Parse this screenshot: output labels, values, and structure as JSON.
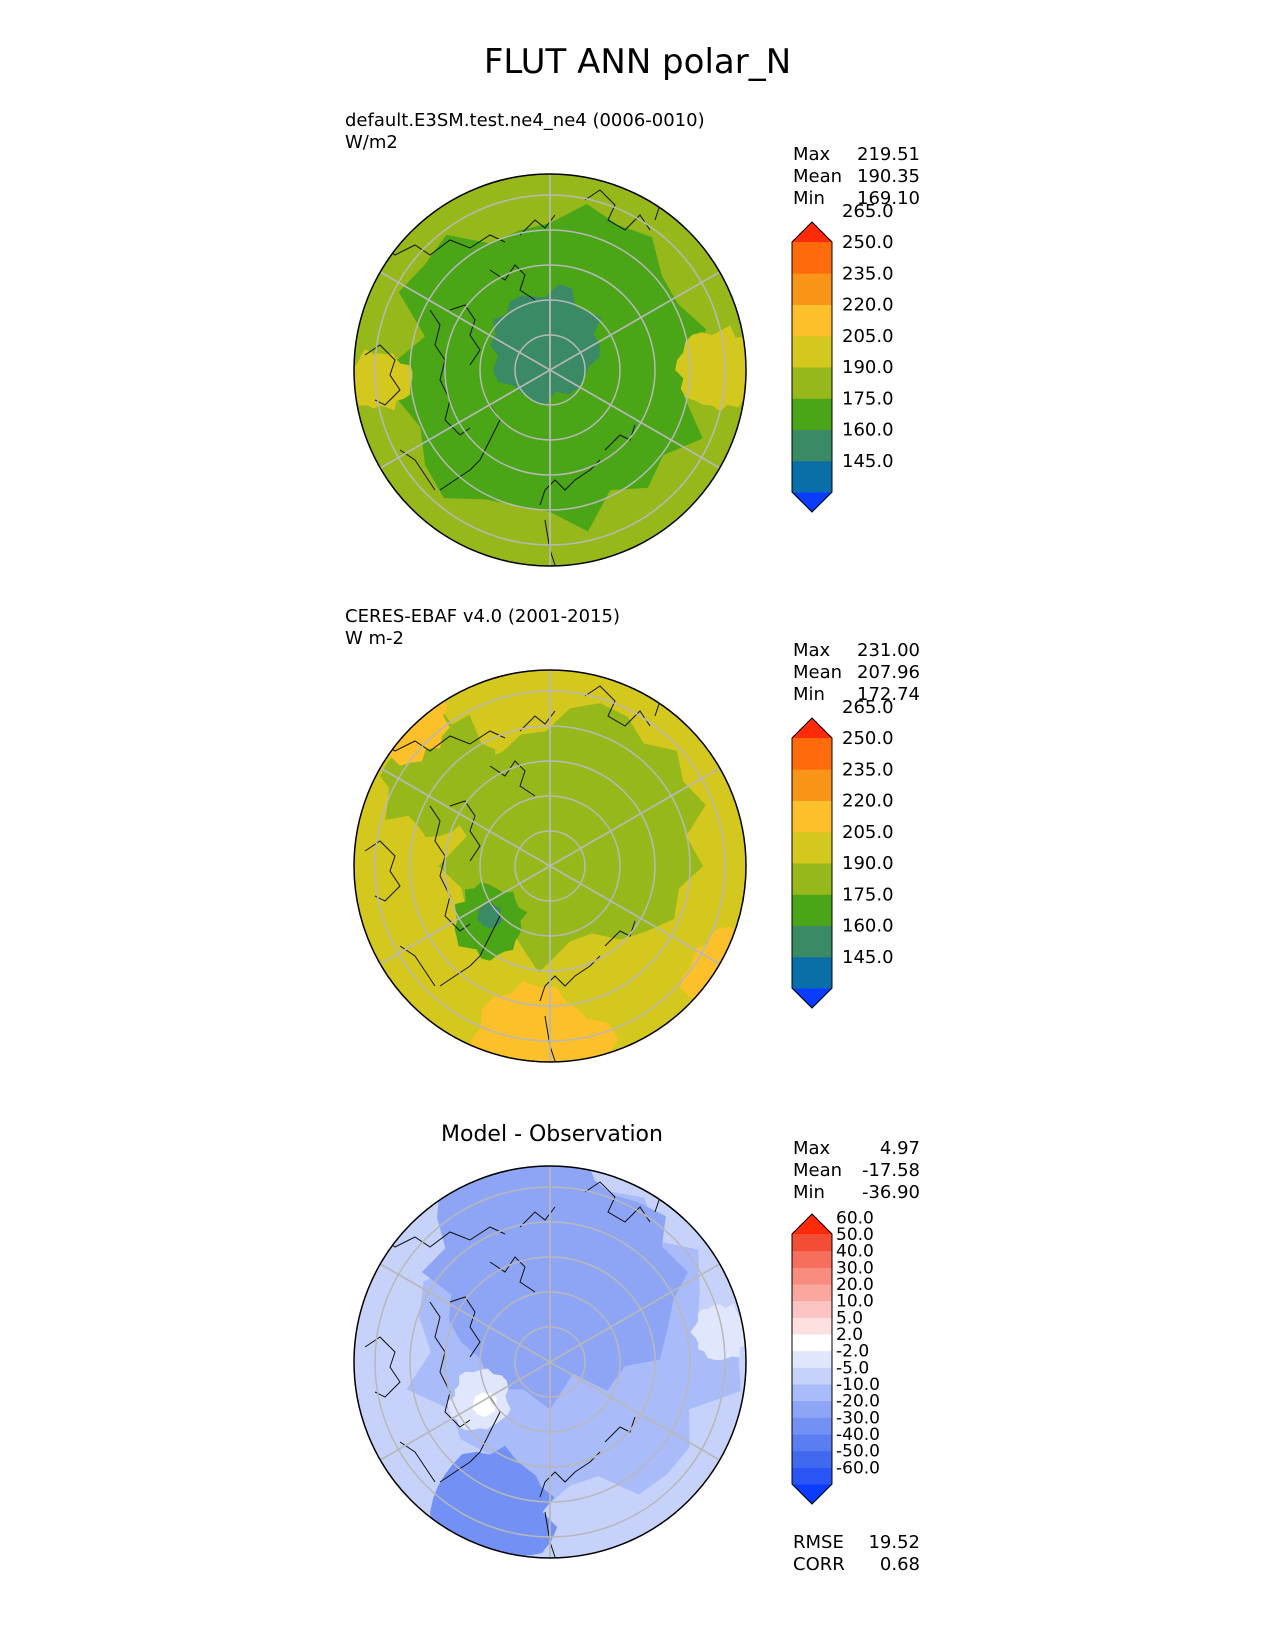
{
  "title": "FLUT ANN polar_N",
  "panels": [
    {
      "id": "test",
      "label_line1": "default.E3SM.test.ne4_ne4 (0006-0010)",
      "label_line2": "W/m2",
      "center_title": "",
      "stats": [
        {
          "label": "Max",
          "value": "219.51"
        },
        {
          "label": "Mean",
          "value": "190.35"
        },
        {
          "label": "Min",
          "value": "169.10"
        }
      ],
      "colorbar": {
        "ticks": [
          "145.0",
          "160.0",
          "175.0",
          "190.0",
          "205.0",
          "220.0",
          "235.0",
          "250.0",
          "265.0"
        ],
        "colors": [
          "#0a3cff",
          "#0a6ea8",
          "#3a8a66",
          "#4aa617",
          "#97b81a",
          "#d4c81e",
          "#fbc02a",
          "#f89516",
          "#ff6a0a",
          "#ff2a0a"
        ]
      }
    },
    {
      "id": "reference",
      "label_line1": "CERES-EBAF v4.0 (2001-2015)",
      "label_line2": "W m-2",
      "center_title": "",
      "stats": [
        {
          "label": "Max",
          "value": "231.00"
        },
        {
          "label": "Mean",
          "value": "207.96"
        },
        {
          "label": "Min",
          "value": "172.74"
        }
      ],
      "colorbar": {
        "ticks": [
          "145.0",
          "160.0",
          "175.0",
          "190.0",
          "205.0",
          "220.0",
          "235.0",
          "250.0",
          "265.0"
        ],
        "colors": [
          "#0a3cff",
          "#0a6ea8",
          "#3a8a66",
          "#4aa617",
          "#97b81a",
          "#d4c81e",
          "#fbc02a",
          "#f89516",
          "#ff6a0a",
          "#ff2a0a"
        ]
      }
    },
    {
      "id": "diff",
      "label_line1": "",
      "label_line2": "",
      "center_title": "Model - Observation",
      "stats": [
        {
          "label": "Max",
          "value": "4.97"
        },
        {
          "label": "Mean",
          "value": "-17.58"
        },
        {
          "label": "Min",
          "value": "-36.90"
        }
      ],
      "colorbar": {
        "ticks": [
          "-60.0",
          "-50.0",
          "-40.0",
          "-30.0",
          "-20.0",
          "-10.0",
          "-5.0",
          "-2.0",
          "2.0",
          "5.0",
          "10.0",
          "20.0",
          "30.0",
          "40.0",
          "50.0",
          "60.0"
        ],
        "colors": [
          "#0a3cff",
          "#2a55f5",
          "#4169f0",
          "#5a7ef2",
          "#7391f4",
          "#8ea5f6",
          "#a9bbf8",
          "#c6d2fa",
          "#e0e7fc",
          "#ffffff",
          "#fde0e0",
          "#fcc4c2",
          "#faa89f",
          "#f88c7e",
          "#f66e5c",
          "#f44d35",
          "#ff2a0a"
        ]
      },
      "metrics": [
        {
          "label": "RMSE",
          "value": "19.52"
        },
        {
          "label": "CORR",
          "value": "0.68"
        }
      ]
    }
  ]
}
